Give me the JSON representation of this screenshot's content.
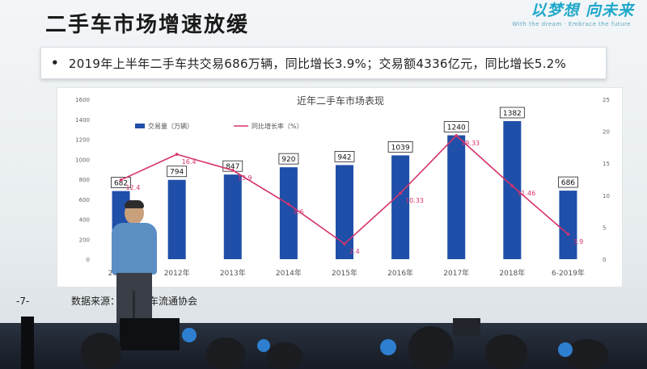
{
  "slide": {
    "title": "二手车市场增速放缓",
    "slogan": "以梦想  向未来",
    "slogan_sub": "With the dream · Embrace the future",
    "headline_bullet": "•",
    "headline": "2019年上半年二手车共交易686万辆，同比增长3.9%；交易额4336亿元，同比增长5.2%",
    "page_number": "-7-",
    "source": "数据来源：中国汽车流通协会"
  },
  "chart_data": {
    "type": "bar",
    "title": "近年二手车市场表现",
    "categories": [
      "2011年",
      "2012年",
      "2013年",
      "2014年",
      "2015年",
      "2016年",
      "2017年",
      "2018年",
      "6-2019年"
    ],
    "series": [
      {
        "name": "交易量（万辆）",
        "type": "bar",
        "axis": "left",
        "color": "#1f4fa8",
        "values": [
          682,
          794,
          847,
          920,
          942,
          1039,
          1240,
          1382,
          686
        ],
        "labels": [
          "682",
          "794",
          "847",
          "920",
          "942",
          "1039",
          "1240",
          "1382",
          "686"
        ]
      },
      {
        "name": "同比增长率（%）",
        "type": "line",
        "axis": "right",
        "color": "#d6336c",
        "values": [
          12.4,
          16.4,
          13.9,
          8.6,
          2.4,
          10.33,
          19.33,
          11.46,
          3.9
        ],
        "labels": [
          "12.4",
          "16.4",
          "13.9",
          "8.6",
          "2.4",
          "10.33",
          "19.33",
          "11.46",
          "3.9"
        ]
      }
    ],
    "ylim_left": [
      0,
      1600
    ],
    "yticks_left": [
      "0",
      "200",
      "400",
      "600",
      "800",
      "1000",
      "1200",
      "1400",
      "1600"
    ],
    "ylim_right": [
      0,
      25
    ],
    "yticks_right": [
      "0",
      "5",
      "10",
      "15",
      "20",
      "25"
    ],
    "legend": "top-left",
    "grid": false
  }
}
